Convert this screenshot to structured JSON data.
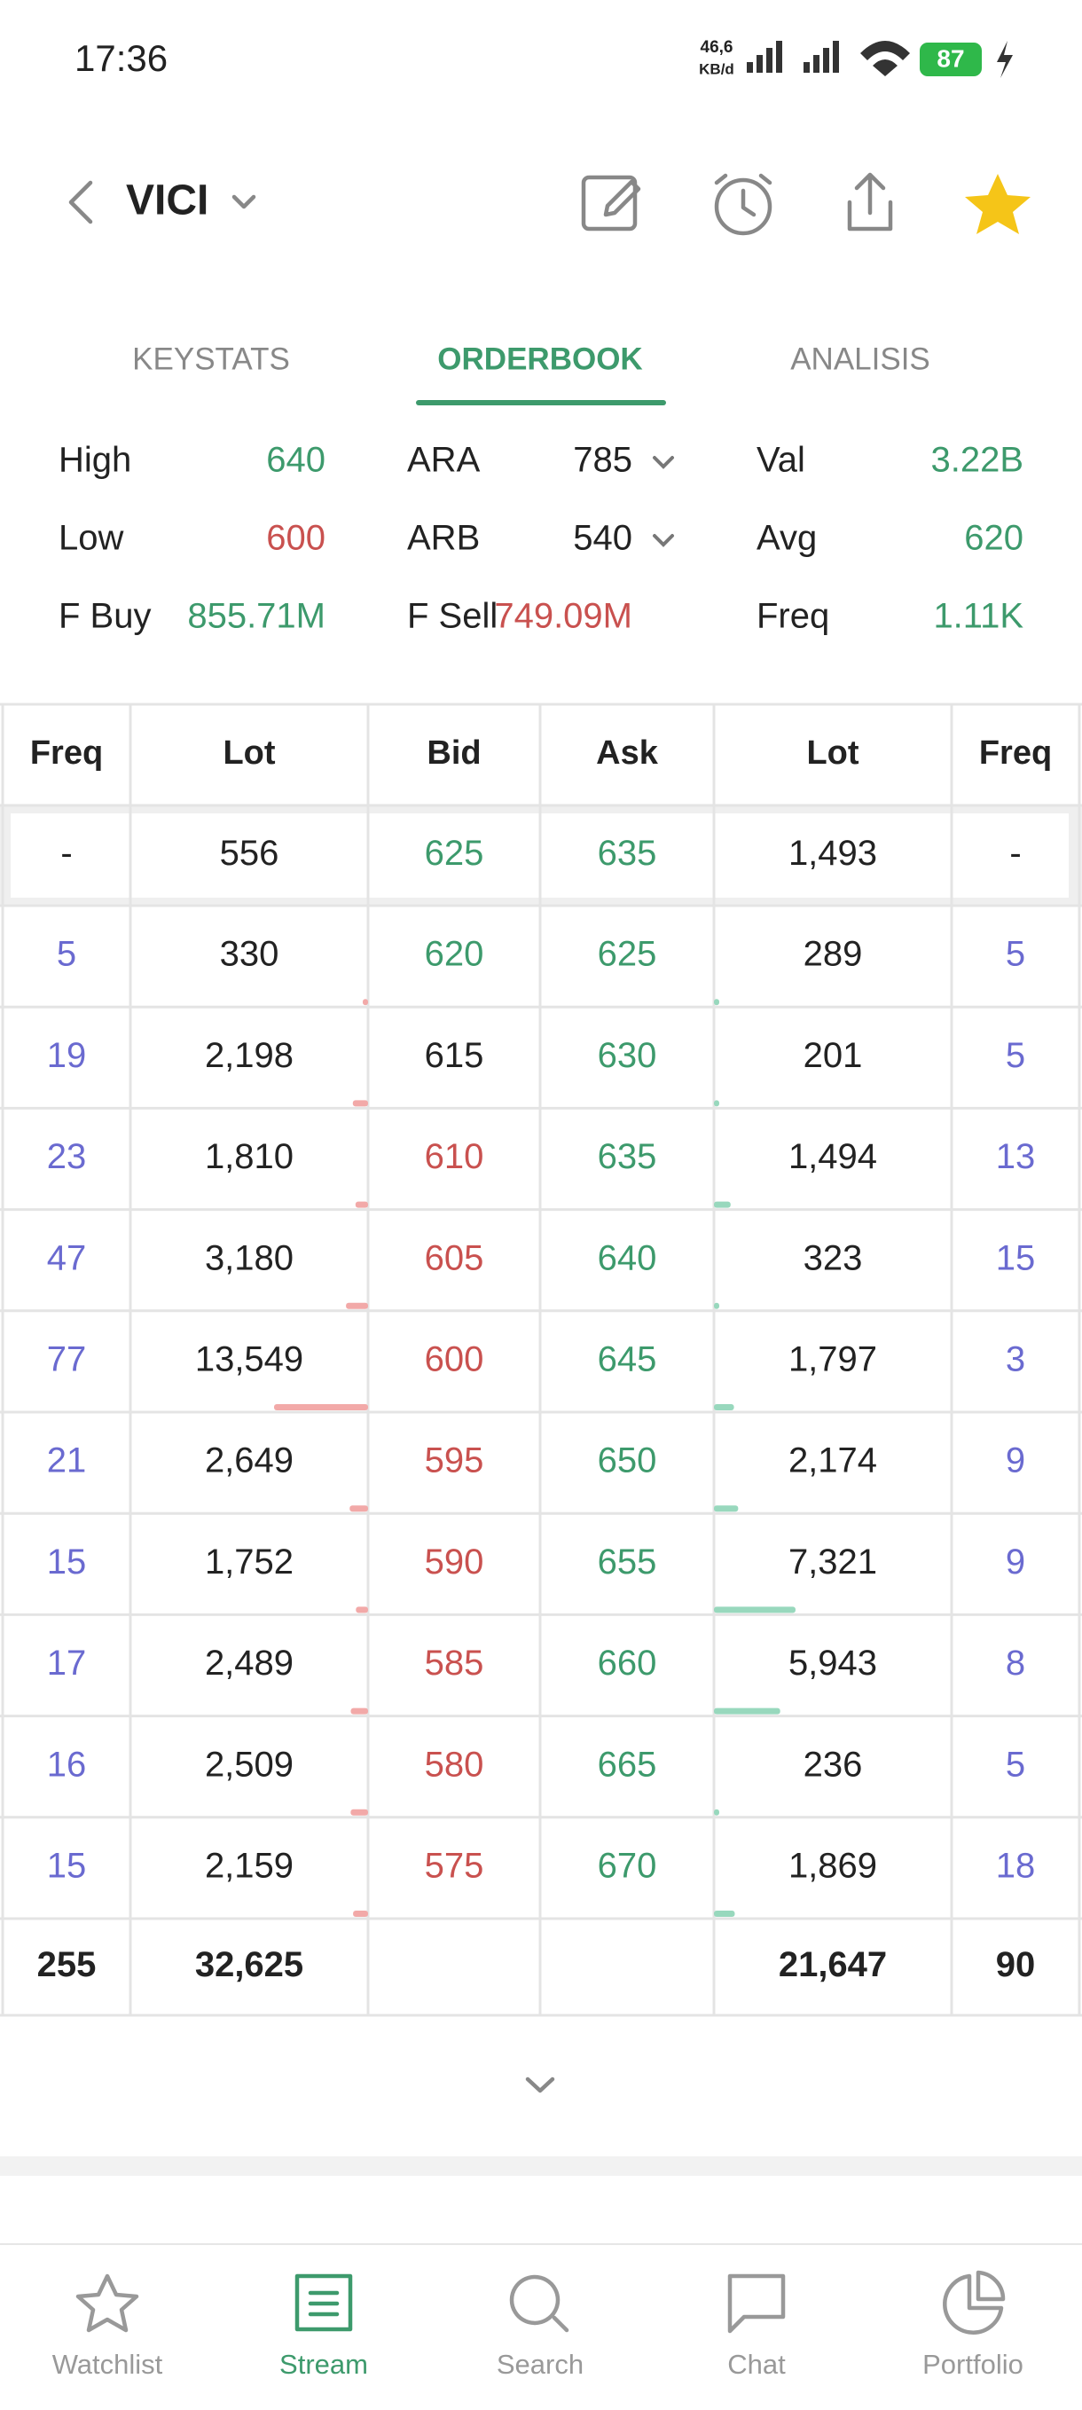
{
  "status": {
    "time": "17:36",
    "speed": "46,6",
    "speed_unit": "KB/d",
    "battery": "87"
  },
  "header": {
    "ticker": "VICI"
  },
  "tabs": {
    "items": [
      "KEYSTATS",
      "ORDERBOOK",
      "ANALISIS"
    ],
    "active": 1
  },
  "stats": [
    [
      {
        "label": "High",
        "value": "640",
        "color": "#3d9a6c"
      },
      {
        "label": "ARA",
        "value": "785",
        "color": "#222222"
      },
      {
        "label": "Val",
        "value": "3.22B",
        "color": "#3d9a6c"
      }
    ],
    [
      {
        "label": "Low",
        "value": "600",
        "color": "#c9514f"
      },
      {
        "label": "ARB",
        "value": "540",
        "color": "#222222"
      },
      {
        "label": "Avg",
        "value": "620",
        "color": "#3d9a6c"
      }
    ],
    [
      {
        "label": "F Buy",
        "value": "855.71M",
        "color": "#3d9a6c"
      },
      {
        "label": "F Sell",
        "value": "749.09M",
        "color": "#c9514f"
      },
      {
        "label": "Freq",
        "value": "1.11K",
        "color": "#3d9a6c"
      }
    ]
  ],
  "orderbook": {
    "columns": [
      "Freq",
      "Lot",
      "Bid",
      "Ask",
      "Lot",
      "Freq"
    ],
    "best": [
      "-",
      "556",
      "625",
      "635",
      "1,493",
      "-"
    ],
    "rows": [
      {
        "bid_freq": "5",
        "bid_lot": 330,
        "bid": "620",
        "bid_color": "#3d9a6c",
        "ask": "625",
        "ask_color": "#3d9a6c",
        "ask_lot": 289,
        "ask_freq": "5"
      },
      {
        "bid_freq": "19",
        "bid_lot": 2198,
        "bid_lot_label": "2,198",
        "bid": "615",
        "bid_color": "#222222",
        "ask": "630",
        "ask_color": "#3d9a6c",
        "ask_lot": 201,
        "ask_freq": "5"
      },
      {
        "bid_freq": "23",
        "bid_lot": 1810,
        "bid_lot_label": "1,810",
        "bid": "610",
        "bid_color": "#c9514f",
        "ask": "635",
        "ask_color": "#3d9a6c",
        "ask_lot": 1494,
        "ask_lot_label": "1,494",
        "ask_freq": "13"
      },
      {
        "bid_freq": "47",
        "bid_lot": 3180,
        "bid_lot_label": "3,180",
        "bid": "605",
        "bid_color": "#c9514f",
        "ask": "640",
        "ask_color": "#3d9a6c",
        "ask_lot": 323,
        "ask_freq": "15"
      },
      {
        "bid_freq": "77",
        "bid_lot": 13549,
        "bid_lot_label": "13,549",
        "bid": "600",
        "bid_color": "#c9514f",
        "ask": "645",
        "ask_color": "#3d9a6c",
        "ask_lot": 1797,
        "ask_lot_label": "1,797",
        "ask_freq": "3"
      },
      {
        "bid_freq": "21",
        "bid_lot": 2649,
        "bid_lot_label": "2,649",
        "bid": "595",
        "bid_color": "#c9514f",
        "ask": "650",
        "ask_color": "#3d9a6c",
        "ask_lot": 2174,
        "ask_lot_label": "2,174",
        "ask_freq": "9"
      },
      {
        "bid_freq": "15",
        "bid_lot": 1752,
        "bid_lot_label": "1,752",
        "bid": "590",
        "bid_color": "#c9514f",
        "ask": "655",
        "ask_color": "#3d9a6c",
        "ask_lot": 7321,
        "ask_lot_label": "7,321",
        "ask_freq": "9"
      },
      {
        "bid_freq": "17",
        "bid_lot": 2489,
        "bid_lot_label": "2,489",
        "bid": "585",
        "bid_color": "#c9514f",
        "ask": "660",
        "ask_color": "#3d9a6c",
        "ask_lot": 5943,
        "ask_lot_label": "5,943",
        "ask_freq": "8"
      },
      {
        "bid_freq": "16",
        "bid_lot": 2509,
        "bid_lot_label": "2,509",
        "bid": "580",
        "bid_color": "#c9514f",
        "ask": "665",
        "ask_color": "#3d9a6c",
        "ask_lot": 236,
        "ask_freq": "5"
      },
      {
        "bid_freq": "15",
        "bid_lot": 2159,
        "bid_lot_label": "2,159",
        "bid": "575",
        "bid_color": "#c9514f",
        "ask": "670",
        "ask_color": "#3d9a6c",
        "ask_lot": 1869,
        "ask_lot_label": "1,869",
        "ask_freq": "18"
      }
    ],
    "totals": [
      "255",
      "32,625",
      "21,647",
      "90"
    ]
  },
  "nav": {
    "items": [
      "Watchlist",
      "Stream",
      "Search",
      "Chat",
      "Portfolio"
    ],
    "active": 1
  }
}
